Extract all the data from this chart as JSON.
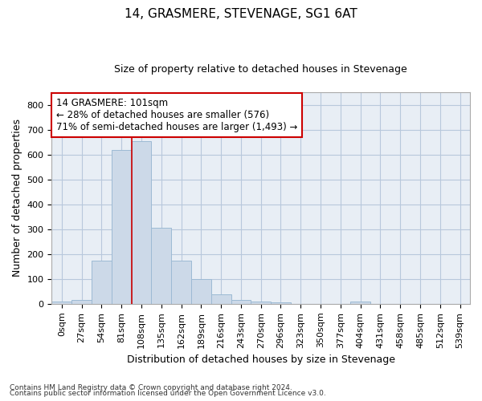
{
  "title": "14, GRASMERE, STEVENAGE, SG1 6AT",
  "subtitle": "Size of property relative to detached houses in Stevenage",
  "xlabel": "Distribution of detached houses by size in Stevenage",
  "ylabel": "Number of detached properties",
  "bar_color": "#ccd9e8",
  "bar_edgecolor": "#9dbad4",
  "axes_facecolor": "#e8eef5",
  "background_color": "#ffffff",
  "grid_color": "#b8c8dc",
  "categories": [
    "0sqm",
    "27sqm",
    "54sqm",
    "81sqm",
    "108sqm",
    "135sqm",
    "162sqm",
    "189sqm",
    "216sqm",
    "243sqm",
    "270sqm",
    "296sqm",
    "323sqm",
    "350sqm",
    "377sqm",
    "404sqm",
    "431sqm",
    "458sqm",
    "485sqm",
    "512sqm",
    "539sqm"
  ],
  "values": [
    8,
    15,
    175,
    617,
    652,
    305,
    175,
    100,
    40,
    15,
    10,
    5,
    0,
    0,
    0,
    8,
    0,
    0,
    0,
    0,
    0
  ],
  "ylim": [
    0,
    850
  ],
  "yticks": [
    0,
    100,
    200,
    300,
    400,
    500,
    600,
    700,
    800
  ],
  "property_line_index": 4,
  "annotation_label": "14 GRASMERE: 101sqm",
  "annotation_line1": "← 28% of detached houses are smaller (576)",
  "annotation_line2": "71% of semi-detached houses are larger (1,493) →",
  "annotation_box_facecolor": "#ffffff",
  "annotation_box_edgecolor": "#cc0000",
  "line_color": "#cc0000",
  "footnote1": "Contains HM Land Registry data © Crown copyright and database right 2024.",
  "footnote2": "Contains public sector information licensed under the Open Government Licence v3.0.",
  "title_fontsize": 11,
  "subtitle_fontsize": 9,
  "tick_fontsize": 8,
  "ylabel_fontsize": 9,
  "xlabel_fontsize": 9,
  "annotation_fontsize": 8.5,
  "footnote_fontsize": 6.5
}
